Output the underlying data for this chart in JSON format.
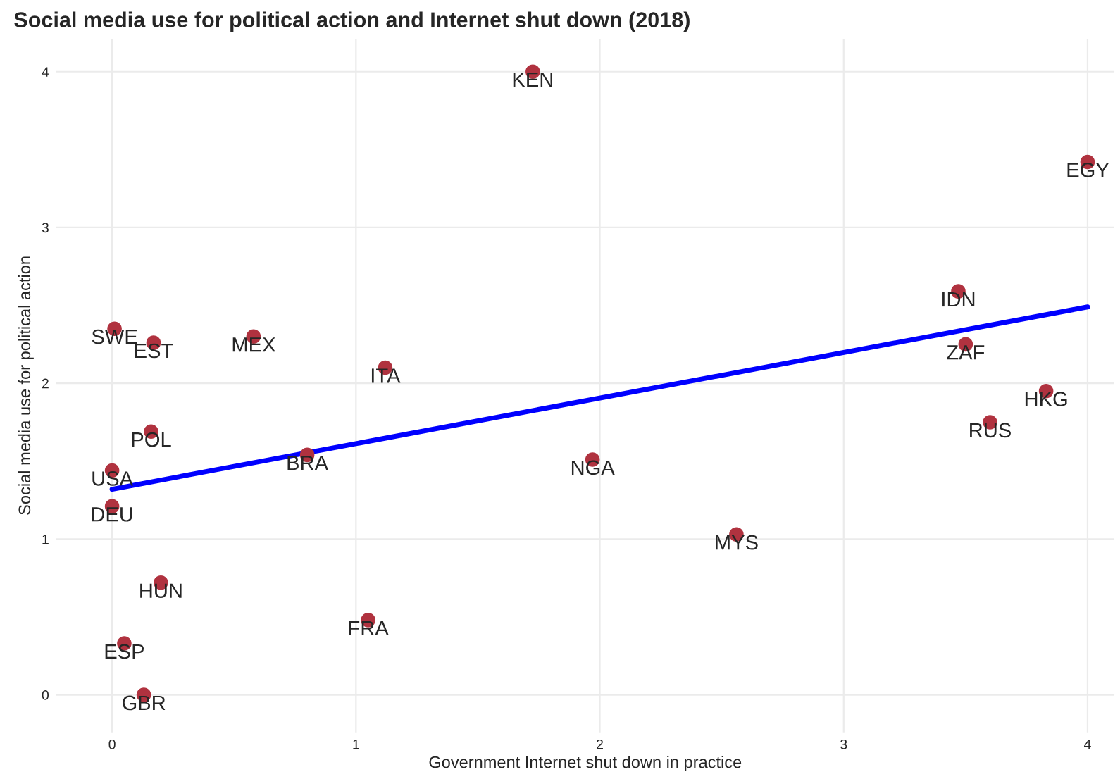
{
  "chart_data": {
    "type": "scatter",
    "title": "Social media use for political action and Internet shut down (2018)",
    "xlabel": "Government Internet shut down in practice",
    "ylabel": "Social media use for political action",
    "xlim": [
      -0.23,
      4.11
    ],
    "ylim": [
      -0.24,
      4.21
    ],
    "xticks": [
      0,
      1,
      2,
      3,
      4
    ],
    "yticks": [
      0,
      1,
      2,
      3,
      4
    ],
    "grid": true,
    "series": [
      {
        "marker": "circle",
        "color": "#b0323f",
        "x": [
          1.725,
          4.0,
          3.47,
          3.5,
          3.83,
          3.6,
          1.97,
          2.56,
          0.01,
          0.17,
          0.58,
          1.12,
          0.16,
          0.8,
          0.0,
          0.0,
          0.2,
          1.05,
          0.05,
          0.13
        ],
        "values": [
          4.0,
          3.42,
          2.59,
          2.25,
          1.95,
          1.75,
          1.51,
          1.03,
          2.35,
          2.26,
          2.3,
          2.1,
          1.69,
          1.54,
          1.44,
          1.21,
          0.72,
          0.48,
          0.33,
          0.0
        ]
      },
      {
        "type": "line",
        "color": "#0000ff",
        "x": [
          0,
          4
        ],
        "values": [
          1.32,
          2.49
        ]
      }
    ],
    "annotations": [
      {
        "text": "KEN",
        "x": 1.725,
        "y": 4.0
      },
      {
        "text": "EGY",
        "x": 4.0,
        "y": 3.42
      },
      {
        "text": "IDN",
        "x": 3.47,
        "y": 2.59
      },
      {
        "text": "ZAF",
        "x": 3.5,
        "y": 2.25
      },
      {
        "text": "HKG",
        "x": 3.83,
        "y": 1.95
      },
      {
        "text": "RUS",
        "x": 3.6,
        "y": 1.75
      },
      {
        "text": "NGA",
        "x": 1.97,
        "y": 1.51
      },
      {
        "text": "MYS",
        "x": 2.56,
        "y": 1.03
      },
      {
        "text": "SWE",
        "x": 0.01,
        "y": 2.35
      },
      {
        "text": "EST",
        "x": 0.17,
        "y": 2.26
      },
      {
        "text": "MEX",
        "x": 0.58,
        "y": 2.3
      },
      {
        "text": "ITA",
        "x": 1.12,
        "y": 2.1
      },
      {
        "text": "POL",
        "x": 0.16,
        "y": 1.69
      },
      {
        "text": "BRA",
        "x": 0.8,
        "y": 1.54
      },
      {
        "text": "USA",
        "x": 0.0,
        "y": 1.44
      },
      {
        "text": "DEU",
        "x": 0.0,
        "y": 1.21
      },
      {
        "text": "HUN",
        "x": 0.2,
        "y": 0.72
      },
      {
        "text": "FRA",
        "x": 1.05,
        "y": 0.48
      },
      {
        "text": "ESP",
        "x": 0.05,
        "y": 0.33
      },
      {
        "text": "GBR",
        "x": 0.13,
        "y": 0.0
      }
    ]
  }
}
